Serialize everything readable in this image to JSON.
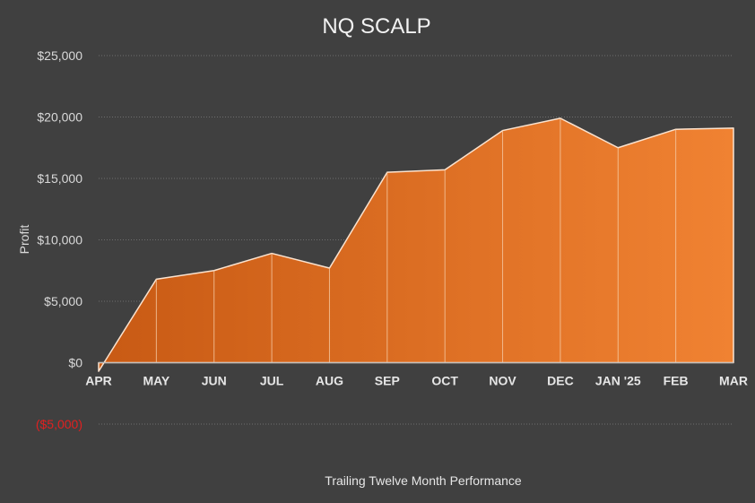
{
  "chart_data": {
    "type": "area",
    "title": "NQ SCALP",
    "xlabel": "Trailing Twelve Month Performance",
    "ylabel": "Profit",
    "categories": [
      "APR",
      "MAY",
      "JUN",
      "JUL",
      "AUG",
      "SEP",
      "OCT",
      "NOV",
      "DEC",
      "JAN '25",
      "FEB",
      "MAR"
    ],
    "series": [
      {
        "values": [
          -700,
          6800,
          7500,
          8900,
          7700,
          15500,
          15700,
          18900,
          19900,
          17500,
          19000,
          19100
        ]
      }
    ],
    "ylim": [
      -5000,
      25000
    ],
    "yticks": [
      25000,
      20000,
      15000,
      10000,
      5000,
      0,
      -5000
    ],
    "ytick_labels": [
      "$25,000",
      "$20,000",
      "$15,000",
      "$10,000",
      "$5,000",
      "$0",
      "($5,000)"
    ],
    "grid": true,
    "colors": {
      "fill_start": "#c85a14",
      "fill_end": "#f08232",
      "line": "#fbe3cf",
      "negative_label": "#e02020",
      "background": "#404040"
    }
  }
}
